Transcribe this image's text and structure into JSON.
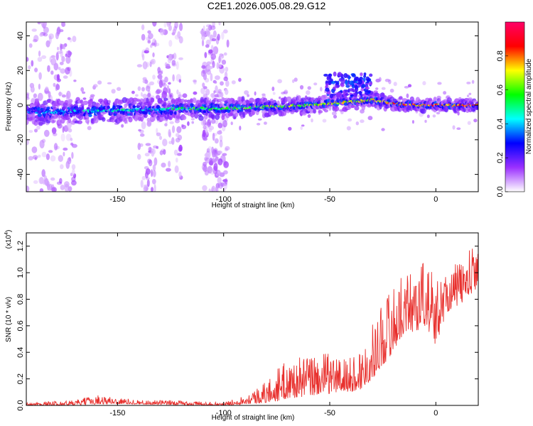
{
  "figure_title": "C2E1.2026.005.08.29.G12",
  "chart_data": [
    {
      "type": "heatmap",
      "title": "C2E1.2026.005.08.29.G12",
      "xlabel": "Height of straight line (km)",
      "ylabel": "Frequency (Hz)",
      "xlim": [
        -193,
        20
      ],
      "ylim": [
        -50,
        48
      ],
      "x_ticks": [
        -150,
        -100,
        -50,
        0
      ],
      "x_tick_labels": [
        "-150",
        "-100",
        "-50",
        "0"
      ],
      "y_ticks": [
        -40,
        -20,
        0,
        20,
        40
      ],
      "y_tick_labels": [
        "-40",
        "-20",
        "0",
        "20",
        "40"
      ],
      "colorbar": {
        "label": "Normalized spectral amplitude",
        "range": [
          0,
          1
        ],
        "ticks": [
          0.0,
          0.2,
          0.4,
          0.6,
          0.8
        ],
        "tick_labels": [
          "0.0",
          "0.2",
          "0.4",
          "0.6",
          "0.8"
        ],
        "colormap": "rainbow",
        "colors": [
          "#ffffff",
          "#9b30ff",
          "#0000ff",
          "#00ffff",
          "#00ff00",
          "#ffff00",
          "#ff0000",
          "#ff0066"
        ]
      },
      "ridge": {
        "x": [
          -180,
          -150,
          -120,
          -100,
          -80,
          -60,
          -40,
          -30,
          -20,
          -10,
          0,
          10,
          20
        ],
        "frequency": [
          -4,
          -3,
          -2,
          -2,
          -1,
          0,
          2,
          3,
          1,
          0,
          0,
          0,
          0
        ]
      },
      "blob": {
        "x": [
          -52,
          -30
        ],
        "frequency": [
          5,
          18
        ]
      },
      "scatter_bands_x": [
        [
          -193,
          -170
        ],
        [
          -140,
          -120
        ],
        [
          -110,
          -98
        ]
      ],
      "grid": false
    },
    {
      "type": "line",
      "xlabel": "Height of straight line (km)",
      "ylabel": "SNR (10 * v/v)",
      "y_multiplier": "(x10",
      "y_multiplier_exponent": "4",
      "y_multiplier_close": ")",
      "xlim": [
        -193,
        20
      ],
      "ylim": [
        0,
        1.3
      ],
      "x_ticks": [
        -150,
        -100,
        -50,
        0
      ],
      "x_tick_labels": [
        "-150",
        "-100",
        "-50",
        "0"
      ],
      "y_ticks": [
        0.0,
        0.2,
        0.4,
        0.6,
        0.8,
        1.0,
        1.2
      ],
      "y_tick_labels": [
        "0.0",
        "0.2",
        "0.4",
        "0.6",
        "0.8",
        "1.0",
        "1.2"
      ],
      "line_color": "#e8302d",
      "envelope": {
        "x": [
          -193,
          -170,
          -160,
          -140,
          -120,
          -100,
          -90,
          -80,
          -75,
          -70,
          -60,
          -50,
          -40,
          -35,
          -30,
          -25,
          -20,
          -15,
          -10,
          -5,
          0,
          5,
          10,
          15,
          20
        ],
        "low": [
          0.0,
          0.0,
          0.01,
          0.01,
          0.0,
          0.0,
          0.01,
          0.02,
          0.03,
          0.05,
          0.07,
          0.09,
          0.1,
          0.12,
          0.2,
          0.3,
          0.4,
          0.55,
          0.55,
          0.6,
          0.45,
          0.7,
          0.75,
          0.8,
          0.9
        ],
        "high": [
          0.02,
          0.04,
          0.08,
          0.04,
          0.04,
          0.02,
          0.08,
          0.18,
          0.28,
          0.34,
          0.38,
          0.4,
          0.36,
          0.45,
          0.6,
          0.82,
          0.92,
          0.98,
          1.08,
          1.12,
          0.95,
          1.02,
          1.08,
          1.15,
          1.28
        ]
      },
      "grid": false
    }
  ]
}
